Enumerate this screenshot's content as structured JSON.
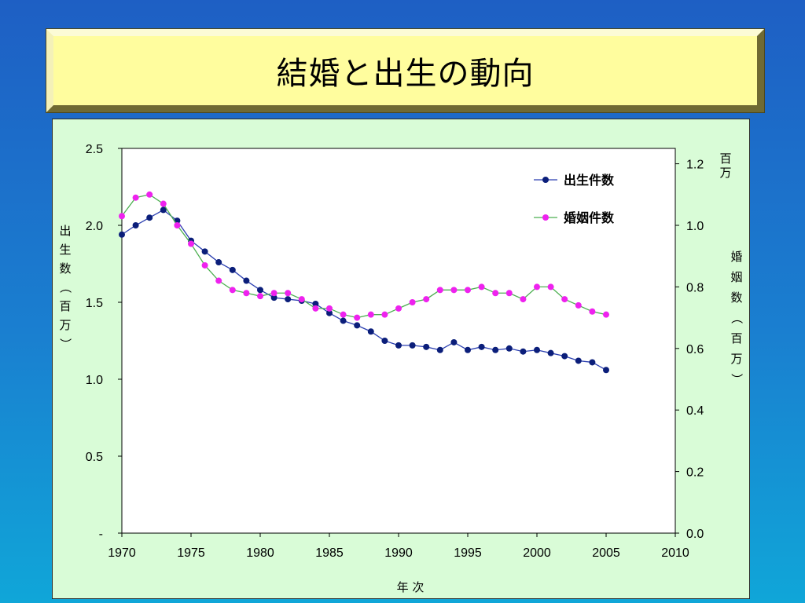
{
  "title": "結婚と出生の動向",
  "chart_data": {
    "type": "line",
    "xlabel": "年 次",
    "ylabel_left": "出生数（百万）",
    "ylabel_right": "婚姻数（百万）",
    "right_unit_top": "百万",
    "x_ticks": [
      "1970",
      "1975",
      "1980",
      "1985",
      "1990",
      "1995",
      "2000",
      "2005",
      "2010"
    ],
    "y_left_ticks": [
      "-",
      "0.5",
      "1.0",
      "1.5",
      "2.0",
      "2.5"
    ],
    "y_right_ticks": [
      "0.0",
      "0.2",
      "0.4",
      "0.6",
      "0.8",
      "1.0",
      "1.2"
    ],
    "xlim": [
      1970,
      2010
    ],
    "y_left_lim": [
      0,
      2.5
    ],
    "y_right_lim": [
      0,
      1.25
    ],
    "legend_position": "top-right",
    "grid": false,
    "series": [
      {
        "name": "出生件数",
        "axis": "left",
        "color": "#0b1e7a",
        "line_color": "#2b3fb0",
        "x": [
          1970,
          1971,
          1972,
          1973,
          1974,
          1975,
          1976,
          1977,
          1978,
          1979,
          1980,
          1981,
          1982,
          1983,
          1984,
          1985,
          1986,
          1987,
          1988,
          1989,
          1990,
          1991,
          1992,
          1993,
          1994,
          1995,
          1996,
          1997,
          1998,
          1999,
          2000,
          2001,
          2002,
          2003,
          2004,
          2005
        ],
        "values": [
          1.94,
          2.0,
          2.05,
          2.1,
          2.03,
          1.9,
          1.83,
          1.76,
          1.71,
          1.64,
          1.58,
          1.53,
          1.52,
          1.51,
          1.49,
          1.43,
          1.38,
          1.35,
          1.31,
          1.25,
          1.22,
          1.22,
          1.21,
          1.19,
          1.24,
          1.19,
          1.21,
          1.19,
          1.2,
          1.18,
          1.19,
          1.17,
          1.15,
          1.12,
          1.11,
          1.06
        ]
      },
      {
        "name": "婚姻件数",
        "axis": "right",
        "color": "#ee22ee",
        "line_color": "#4caf50",
        "x": [
          1970,
          1971,
          1972,
          1973,
          1974,
          1975,
          1976,
          1977,
          1978,
          1979,
          1980,
          1981,
          1982,
          1983,
          1984,
          1985,
          1986,
          1987,
          1988,
          1989,
          1990,
          1991,
          1992,
          1993,
          1994,
          1995,
          1996,
          1997,
          1998,
          1999,
          2000,
          2001,
          2002,
          2003,
          2004,
          2005
        ],
        "values": [
          1.03,
          1.09,
          1.1,
          1.07,
          1.0,
          0.94,
          0.87,
          0.82,
          0.79,
          0.78,
          0.77,
          0.78,
          0.78,
          0.76,
          0.73,
          0.73,
          0.71,
          0.7,
          0.71,
          0.71,
          0.73,
          0.75,
          0.76,
          0.79,
          0.79,
          0.79,
          0.8,
          0.78,
          0.78,
          0.76,
          0.8,
          0.8,
          0.76,
          0.74,
          0.72,
          0.71
        ]
      }
    ]
  }
}
